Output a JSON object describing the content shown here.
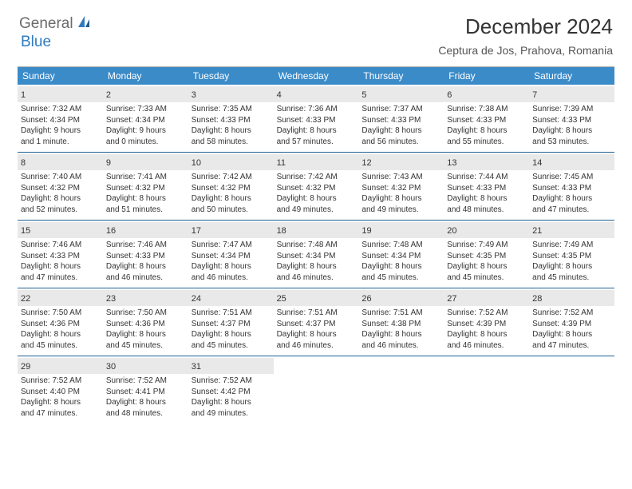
{
  "logo": {
    "text1": "General",
    "text2": "Blue"
  },
  "title": "December 2024",
  "location": "Ceptura de Jos, Prahova, Romania",
  "header_bg": "#3b8bc9",
  "header_text_color": "#ffffff",
  "daynum_bg": "#e9e9e9",
  "week_border": "#206090",
  "dayNames": [
    "Sunday",
    "Monday",
    "Tuesday",
    "Wednesday",
    "Thursday",
    "Friday",
    "Saturday"
  ],
  "weeks": [
    [
      {
        "n": "1",
        "sr": "Sunrise: 7:32 AM",
        "ss": "Sunset: 4:34 PM",
        "d1": "Daylight: 9 hours",
        "d2": "and 1 minute."
      },
      {
        "n": "2",
        "sr": "Sunrise: 7:33 AM",
        "ss": "Sunset: 4:34 PM",
        "d1": "Daylight: 9 hours",
        "d2": "and 0 minutes."
      },
      {
        "n": "3",
        "sr": "Sunrise: 7:35 AM",
        "ss": "Sunset: 4:33 PM",
        "d1": "Daylight: 8 hours",
        "d2": "and 58 minutes."
      },
      {
        "n": "4",
        "sr": "Sunrise: 7:36 AM",
        "ss": "Sunset: 4:33 PM",
        "d1": "Daylight: 8 hours",
        "d2": "and 57 minutes."
      },
      {
        "n": "5",
        "sr": "Sunrise: 7:37 AM",
        "ss": "Sunset: 4:33 PM",
        "d1": "Daylight: 8 hours",
        "d2": "and 56 minutes."
      },
      {
        "n": "6",
        "sr": "Sunrise: 7:38 AM",
        "ss": "Sunset: 4:33 PM",
        "d1": "Daylight: 8 hours",
        "d2": "and 55 minutes."
      },
      {
        "n": "7",
        "sr": "Sunrise: 7:39 AM",
        "ss": "Sunset: 4:33 PM",
        "d1": "Daylight: 8 hours",
        "d2": "and 53 minutes."
      }
    ],
    [
      {
        "n": "8",
        "sr": "Sunrise: 7:40 AM",
        "ss": "Sunset: 4:32 PM",
        "d1": "Daylight: 8 hours",
        "d2": "and 52 minutes."
      },
      {
        "n": "9",
        "sr": "Sunrise: 7:41 AM",
        "ss": "Sunset: 4:32 PM",
        "d1": "Daylight: 8 hours",
        "d2": "and 51 minutes."
      },
      {
        "n": "10",
        "sr": "Sunrise: 7:42 AM",
        "ss": "Sunset: 4:32 PM",
        "d1": "Daylight: 8 hours",
        "d2": "and 50 minutes."
      },
      {
        "n": "11",
        "sr": "Sunrise: 7:42 AM",
        "ss": "Sunset: 4:32 PM",
        "d1": "Daylight: 8 hours",
        "d2": "and 49 minutes."
      },
      {
        "n": "12",
        "sr": "Sunrise: 7:43 AM",
        "ss": "Sunset: 4:32 PM",
        "d1": "Daylight: 8 hours",
        "d2": "and 49 minutes."
      },
      {
        "n": "13",
        "sr": "Sunrise: 7:44 AM",
        "ss": "Sunset: 4:33 PM",
        "d1": "Daylight: 8 hours",
        "d2": "and 48 minutes."
      },
      {
        "n": "14",
        "sr": "Sunrise: 7:45 AM",
        "ss": "Sunset: 4:33 PM",
        "d1": "Daylight: 8 hours",
        "d2": "and 47 minutes."
      }
    ],
    [
      {
        "n": "15",
        "sr": "Sunrise: 7:46 AM",
        "ss": "Sunset: 4:33 PM",
        "d1": "Daylight: 8 hours",
        "d2": "and 47 minutes."
      },
      {
        "n": "16",
        "sr": "Sunrise: 7:46 AM",
        "ss": "Sunset: 4:33 PM",
        "d1": "Daylight: 8 hours",
        "d2": "and 46 minutes."
      },
      {
        "n": "17",
        "sr": "Sunrise: 7:47 AM",
        "ss": "Sunset: 4:34 PM",
        "d1": "Daylight: 8 hours",
        "d2": "and 46 minutes."
      },
      {
        "n": "18",
        "sr": "Sunrise: 7:48 AM",
        "ss": "Sunset: 4:34 PM",
        "d1": "Daylight: 8 hours",
        "d2": "and 46 minutes."
      },
      {
        "n": "19",
        "sr": "Sunrise: 7:48 AM",
        "ss": "Sunset: 4:34 PM",
        "d1": "Daylight: 8 hours",
        "d2": "and 45 minutes."
      },
      {
        "n": "20",
        "sr": "Sunrise: 7:49 AM",
        "ss": "Sunset: 4:35 PM",
        "d1": "Daylight: 8 hours",
        "d2": "and 45 minutes."
      },
      {
        "n": "21",
        "sr": "Sunrise: 7:49 AM",
        "ss": "Sunset: 4:35 PM",
        "d1": "Daylight: 8 hours",
        "d2": "and 45 minutes."
      }
    ],
    [
      {
        "n": "22",
        "sr": "Sunrise: 7:50 AM",
        "ss": "Sunset: 4:36 PM",
        "d1": "Daylight: 8 hours",
        "d2": "and 45 minutes."
      },
      {
        "n": "23",
        "sr": "Sunrise: 7:50 AM",
        "ss": "Sunset: 4:36 PM",
        "d1": "Daylight: 8 hours",
        "d2": "and 45 minutes."
      },
      {
        "n": "24",
        "sr": "Sunrise: 7:51 AM",
        "ss": "Sunset: 4:37 PM",
        "d1": "Daylight: 8 hours",
        "d2": "and 45 minutes."
      },
      {
        "n": "25",
        "sr": "Sunrise: 7:51 AM",
        "ss": "Sunset: 4:37 PM",
        "d1": "Daylight: 8 hours",
        "d2": "and 46 minutes."
      },
      {
        "n": "26",
        "sr": "Sunrise: 7:51 AM",
        "ss": "Sunset: 4:38 PM",
        "d1": "Daylight: 8 hours",
        "d2": "and 46 minutes."
      },
      {
        "n": "27",
        "sr": "Sunrise: 7:52 AM",
        "ss": "Sunset: 4:39 PM",
        "d1": "Daylight: 8 hours",
        "d2": "and 46 minutes."
      },
      {
        "n": "28",
        "sr": "Sunrise: 7:52 AM",
        "ss": "Sunset: 4:39 PM",
        "d1": "Daylight: 8 hours",
        "d2": "and 47 minutes."
      }
    ],
    [
      {
        "n": "29",
        "sr": "Sunrise: 7:52 AM",
        "ss": "Sunset: 4:40 PM",
        "d1": "Daylight: 8 hours",
        "d2": "and 47 minutes."
      },
      {
        "n": "30",
        "sr": "Sunrise: 7:52 AM",
        "ss": "Sunset: 4:41 PM",
        "d1": "Daylight: 8 hours",
        "d2": "and 48 minutes."
      },
      {
        "n": "31",
        "sr": "Sunrise: 7:52 AM",
        "ss": "Sunset: 4:42 PM",
        "d1": "Daylight: 8 hours",
        "d2": "and 49 minutes."
      },
      null,
      null,
      null,
      null
    ]
  ]
}
